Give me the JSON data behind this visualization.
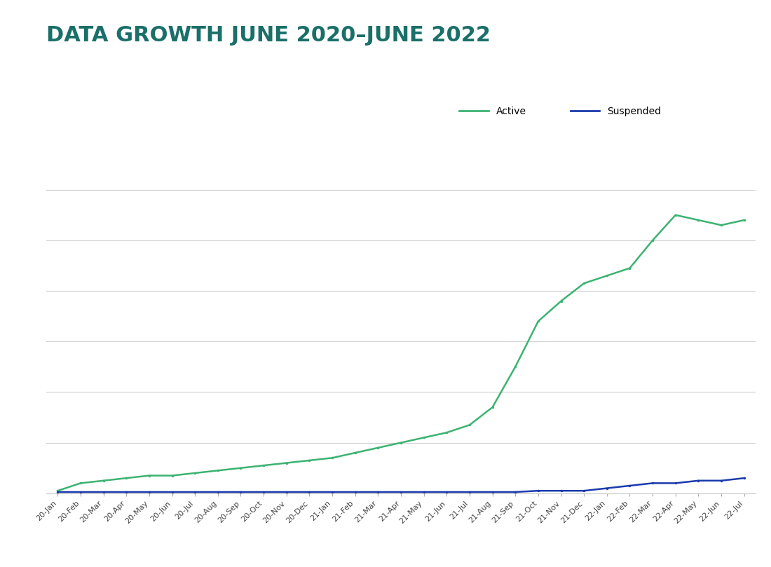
{
  "title": "DATA GROWTH JUNE 2020–JUNE 2022",
  "title_color": "#1a7068",
  "title_fontsize": 22,
  "title_fontweight": "bold",
  "background_color": "#ffffff",
  "plot_bg_color": "#ffffff",
  "active_color": "#3cb371",
  "suspended_color": "#1a3aad",
  "active_label": "Active",
  "suspended_label": "Suspended",
  "x_labels": [
    "20-Jan",
    "20-Feb",
    "20-Mar",
    "20-Apr",
    "20-May",
    "20-Jun",
    "20-Jul",
    "20-Aug",
    "20-Sep",
    "20-Oct",
    "20-Nov",
    "20-Dec",
    "21-Jan",
    "21-Feb",
    "21-Mar",
    "21-Apr",
    "21-May",
    "21-Jun",
    "21-Jul",
    "21-Aug",
    "21-Sep",
    "21-Oct",
    "21-Nov",
    "21-Dec",
    "22-Jan",
    "22-Feb",
    "22-Mar",
    "22-Apr",
    "22-May",
    "22-Jun",
    "22-Jul"
  ],
  "active_values": [
    1,
    4,
    5,
    6,
    7,
    7,
    8,
    9,
    10,
    11,
    12,
    13,
    14,
    16,
    18,
    20,
    22,
    24,
    27,
    34,
    50,
    68,
    76,
    83,
    86,
    89,
    100,
    110,
    108,
    106,
    108
  ],
  "suspended_values": [
    0.5,
    0.5,
    0.5,
    0.5,
    0.5,
    0.5,
    0.5,
    0.5,
    0.5,
    0.5,
    0.5,
    0.5,
    0.5,
    0.5,
    0.5,
    0.5,
    0.5,
    0.5,
    0.5,
    0.5,
    0.5,
    1,
    1,
    1,
    2,
    3,
    4,
    4,
    5,
    5,
    6
  ],
  "grid_color": "#d0d0d0",
  "tick_label_fontsize": 8,
  "ylim": [
    0,
    130
  ],
  "yticks": [
    0,
    20,
    40,
    60,
    80,
    100,
    120
  ]
}
